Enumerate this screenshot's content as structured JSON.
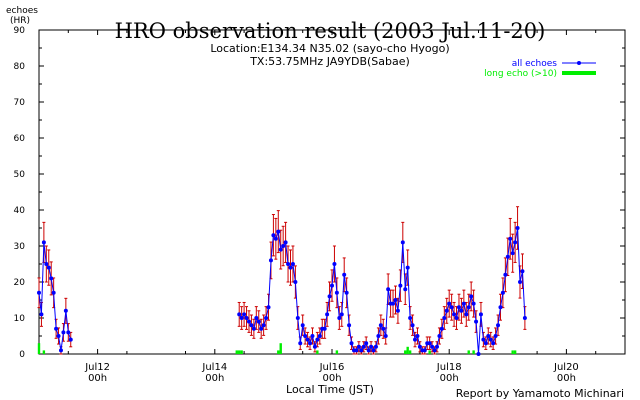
{
  "chart_data": {
    "type": "line",
    "title": "HRO observation result (2003 Jul.11-20)",
    "subtitle_lines": [
      "Location:E134.34 N35.02 (sayo-cho Hyogo)",
      "TX:53.75MHz JA9YDB(Sabae)"
    ],
    "ylabel": "echoes",
    "yunit": "(HR)",
    "xlabel": "Local Time (JST)",
    "credit": "Report by Yamamoto Michinari",
    "ylim": [
      0,
      90
    ],
    "yticks": [
      0,
      10,
      20,
      30,
      40,
      50,
      60,
      70,
      80,
      90
    ],
    "xlim": [
      0,
      240
    ],
    "xticks": [
      {
        "x": 24,
        "day": "Jul12",
        "hour": "00h"
      },
      {
        "x": 72,
        "day": "Jul14",
        "hour": "00h"
      },
      {
        "x": 120,
        "day": "Jul16",
        "hour": "00h"
      },
      {
        "x": 168,
        "day": "Jul18",
        "hour": "00h"
      },
      {
        "x": 216,
        "day": "Jul20",
        "hour": "00h"
      }
    ],
    "legend_position": "top-right",
    "series": [
      {
        "name": "all echoes",
        "color": "#0000ff",
        "error_color": "#cc0000",
        "segments": [
          {
            "x": [
              0,
              1,
              2,
              3,
              4,
              5,
              6,
              7,
              8,
              9,
              10,
              11,
              12,
              13
            ],
            "y": [
              17,
              11,
              31,
              25,
              24,
              21,
              17,
              7,
              5,
              1,
              6,
              12,
              6,
              4
            ]
          },
          {
            "x": [
              82,
              83,
              84,
              85,
              86,
              87,
              88,
              89,
              90,
              91,
              92,
              93,
              94,
              95,
              96,
              97,
              98,
              99,
              100,
              101,
              102,
              103,
              104,
              105,
              106,
              107,
              108,
              109,
              110,
              111,
              112,
              113,
              114,
              115,
              116,
              117,
              118,
              119,
              120,
              121,
              122,
              123,
              124,
              125,
              126,
              127,
              128,
              129,
              130,
              131,
              132,
              133,
              134,
              135,
              136,
              137,
              138,
              139,
              140,
              141,
              142,
              143,
              144,
              145,
              146,
              147,
              148,
              149,
              150,
              151,
              152,
              153,
              154,
              155,
              156,
              157,
              158,
              159,
              160,
              161,
              162,
              163,
              164,
              165,
              166,
              167,
              168,
              169,
              170,
              171,
              172,
              173,
              174,
              175,
              176,
              177,
              178,
              179,
              180,
              181,
              182,
              183,
              184,
              185,
              186,
              187,
              188,
              189,
              190,
              191,
              192,
              193,
              194,
              195,
              196,
              197,
              198,
              199
            ],
            "y": [
              11,
              10,
              11,
              10,
              9,
              8,
              7,
              10,
              9,
              7,
              8,
              10,
              13,
              26,
              33,
              32,
              34,
              29,
              30,
              31,
              25,
              24,
              25,
              20,
              10,
              3,
              8,
              5,
              4,
              3,
              5,
              2,
              4,
              5,
              7,
              7,
              11,
              16,
              19,
              25,
              17,
              10,
              11,
              22,
              17,
              8,
              3,
              1,
              1,
              2,
              1,
              2,
              3,
              1,
              2,
              1,
              2,
              5,
              8,
              7,
              5,
              18,
              14,
              14,
              15,
              12,
              19,
              31,
              18,
              24,
              10,
              8,
              4,
              5,
              2,
              1,
              1,
              3,
              3,
              2,
              1,
              2,
              5,
              7,
              10,
              12,
              14,
              13,
              11,
              10,
              13,
              12,
              14,
              11,
              13,
              16,
              14,
              9,
              0,
              11,
              4,
              3,
              5,
              4,
              3,
              5,
              8,
              13,
              17,
              22,
              27,
              32,
              28,
              31,
              35,
              20,
              23,
              10
            ]
          }
        ]
      },
      {
        "name": "long echo (>10)",
        "color": "#00ee00",
        "x": [
          0,
          2,
          81,
          82,
          83,
          98,
          99,
          114,
          122,
          150,
          151,
          152,
          160,
          176,
          178,
          194,
          195
        ],
        "y": [
          3,
          1,
          1,
          1,
          1,
          1,
          3,
          1,
          1,
          1,
          2,
          1,
          1,
          1,
          1,
          1,
          1
        ]
      }
    ]
  }
}
